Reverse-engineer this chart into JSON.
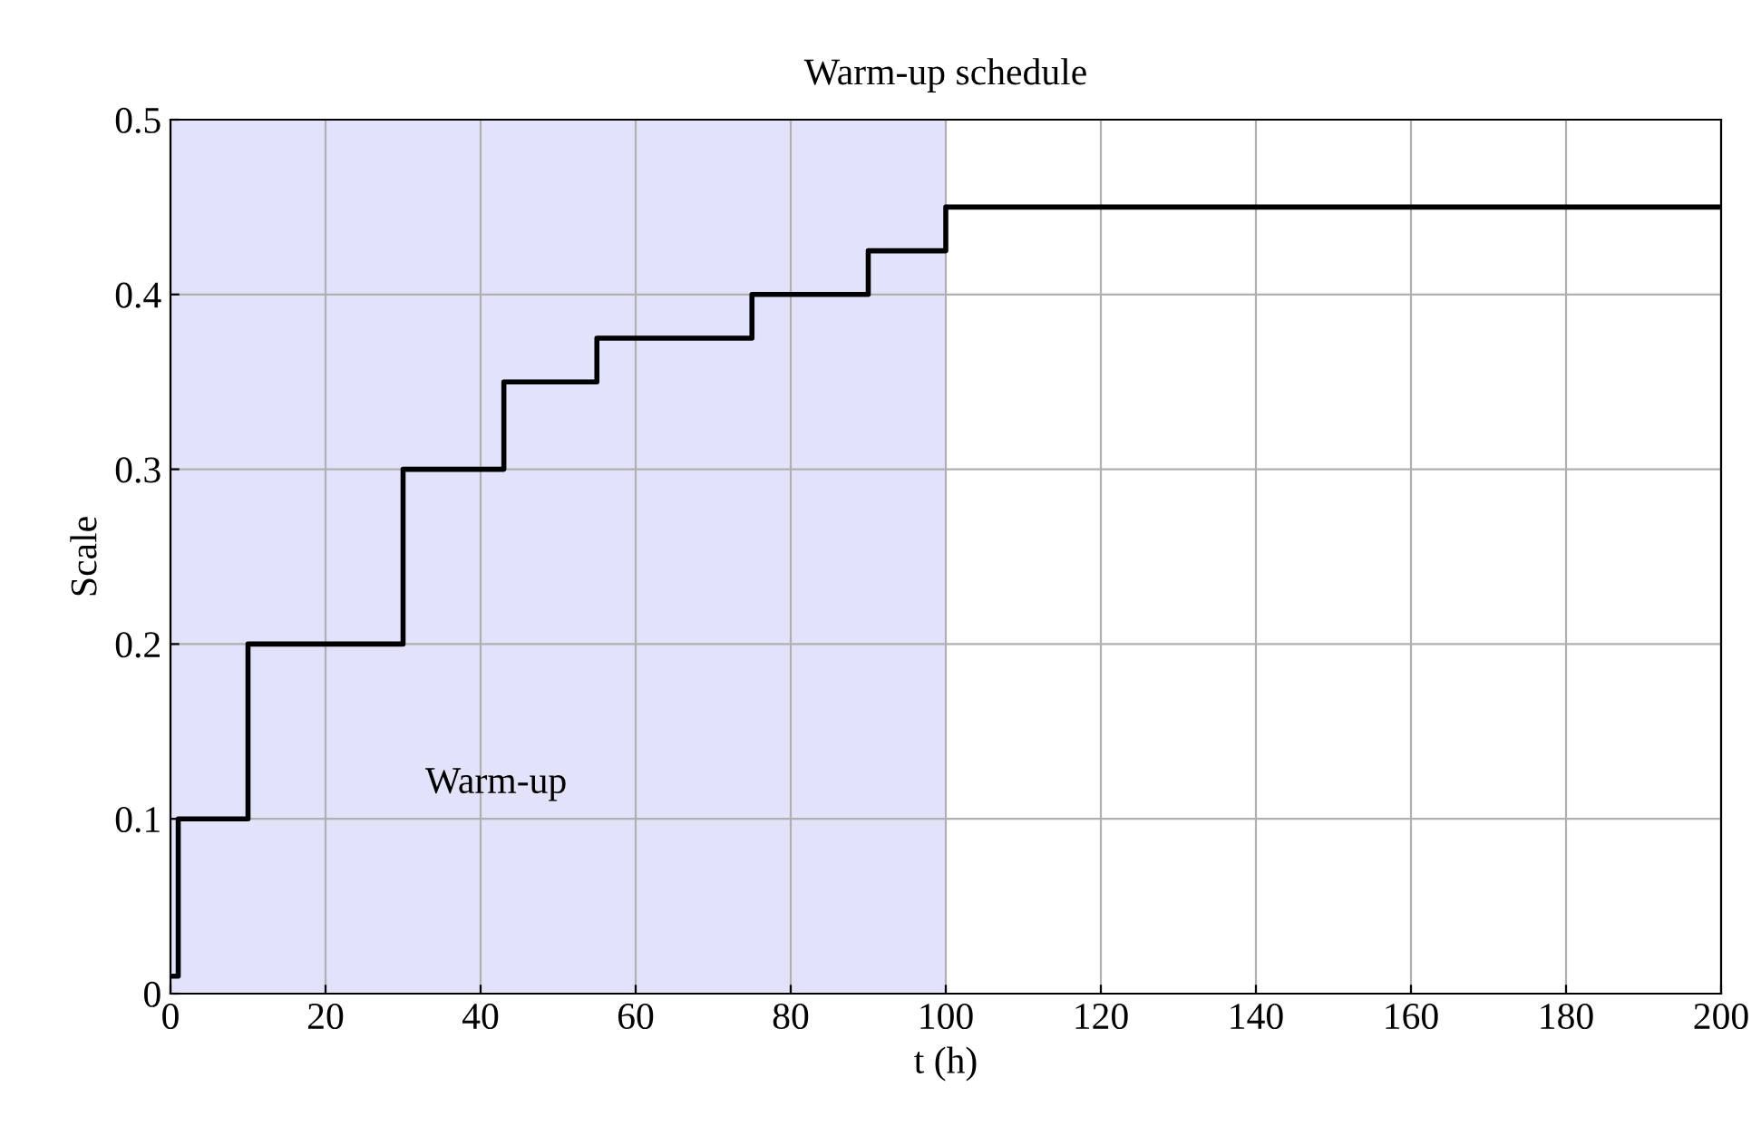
{
  "chart_data": {
    "type": "step",
    "title": "Warm-up schedule",
    "xlabel": "t (h)",
    "ylabel": "Scale",
    "x": [
      0,
      1,
      10,
      30,
      43,
      55,
      75,
      90,
      100,
      200
    ],
    "series": [
      {
        "color": "#000000",
        "values": [
          0.01,
          0.1,
          0.2,
          0.3,
          0.35,
          0.375,
          0.4,
          0.425,
          0.45,
          0.45
        ]
      }
    ],
    "bands": [
      {
        "axis": "x",
        "from": 0,
        "to": 100,
        "label": "Warm-up",
        "color": "#e2e2fb"
      }
    ],
    "xlim": [
      0,
      200
    ],
    "xticks": [
      0,
      20,
      40,
      60,
      80,
      100,
      120,
      140,
      160,
      180,
      200
    ],
    "ylim": [
      0,
      0.5
    ],
    "yticks": [
      0,
      0.1,
      0.2,
      0.3,
      0.4,
      0.5
    ],
    "grid": true,
    "legend": false
  }
}
